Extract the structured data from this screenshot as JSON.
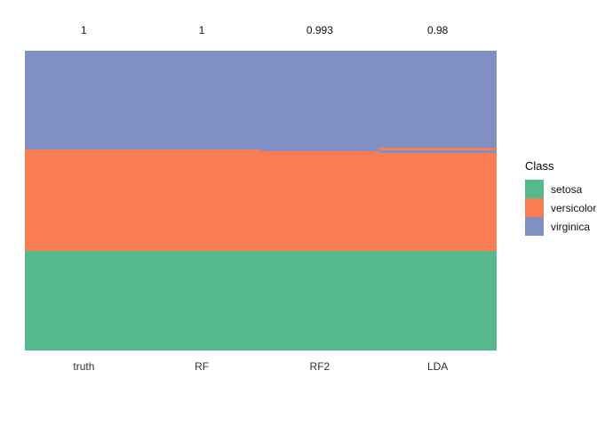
{
  "figure": {
    "background": "#ffffff"
  },
  "chart_data": {
    "type": "bar",
    "variant": "stacked_class_membership_comparison",
    "title": "",
    "xlabel": "",
    "ylabel": "",
    "grid": false,
    "y_axis_visible": false,
    "categories": [
      "truth",
      "RF",
      "RF2",
      "LDA"
    ],
    "accuracy_labels": [
      "1",
      "1",
      "0.993",
      "0.98"
    ],
    "colors": {
      "setosa": "#55B98D",
      "versicolor": "#F97C53",
      "virginica": "#8090C5"
    },
    "legend": {
      "title": "Class",
      "position": "right",
      "entries": [
        {
          "label": "setosa",
          "color": "#55B98D"
        },
        {
          "label": "versicolor",
          "color": "#F97C53"
        },
        {
          "label": "virginica",
          "color": "#8090C5"
        }
      ]
    },
    "columns": [
      {
        "label": "truth",
        "accuracy": "1",
        "segments": [
          {
            "class": "virginica",
            "fraction": 0.3294
          },
          {
            "class": "versicolor",
            "fraction": 0.3383
          },
          {
            "class": "setosa",
            "fraction": 0.3323
          }
        ]
      },
      {
        "label": "RF",
        "accuracy": "1",
        "segments": [
          {
            "class": "virginica",
            "fraction": 0.3294
          },
          {
            "class": "versicolor",
            "fraction": 0.3383
          },
          {
            "class": "setosa",
            "fraction": 0.3323
          }
        ]
      },
      {
        "label": "RF2",
        "accuracy": "0.993",
        "segments": [
          {
            "class": "virginica",
            "fraction": 0.3353
          },
          {
            "class": "versicolor",
            "fraction": 0.3324
          },
          {
            "class": "setosa",
            "fraction": 0.3323
          }
        ]
      },
      {
        "label": "LDA",
        "accuracy": "0.98",
        "segments": [
          {
            "class": "virginica",
            "fraction": 0.3234
          },
          {
            "class": "versicolor",
            "fraction": 0.0089
          },
          {
            "class": "virginica",
            "fraction": 0.0089
          },
          {
            "class": "versicolor",
            "fraction": 0.3265
          },
          {
            "class": "setosa",
            "fraction": 0.3323
          }
        ]
      }
    ]
  }
}
